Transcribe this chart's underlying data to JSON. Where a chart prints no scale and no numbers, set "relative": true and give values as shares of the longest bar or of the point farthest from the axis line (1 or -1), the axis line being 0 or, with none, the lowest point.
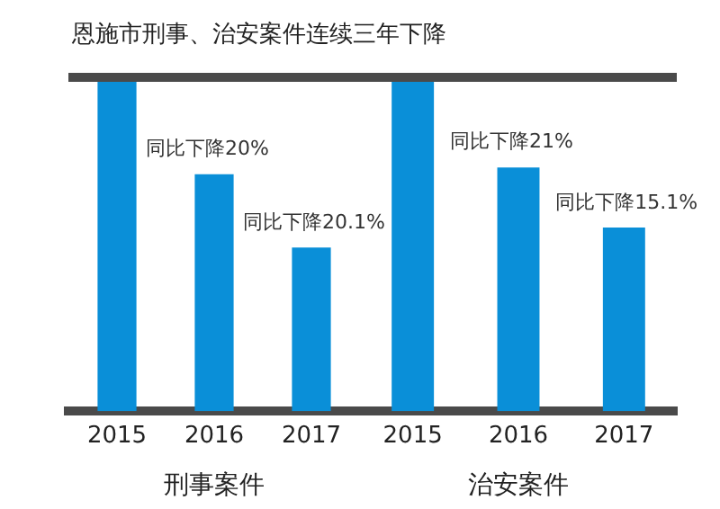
{
  "chart_data": [
    {
      "type": "bar",
      "title": "恩施市刑事、治安案件连续三年下降",
      "xlabel": "刑事案件",
      "relative": true,
      "color": "#0a8fd8",
      "categories": [
        "2015",
        "2016",
        "2017"
      ],
      "values": [
        1,
        0.71,
        0.49
      ],
      "annotations": [
        {
          "text": "同比下降20%",
          "x": "2016",
          "y": 0.71
        },
        {
          "text": "同比下降20.1%",
          "x": "2017",
          "y": 0.49
        }
      ],
      "ref_lines": [
        {
          "axis": "y",
          "value": 1,
          "color": "#4a4a4a"
        }
      ],
      "grid": false,
      "legend": false
    },
    {
      "type": "bar",
      "xlabel": "治安案件",
      "relative": true,
      "color": "#0a8fd8",
      "categories": [
        "2015",
        "2016",
        "2017"
      ],
      "values": [
        1,
        0.73,
        0.55
      ],
      "annotations": [
        {
          "text": "同比下降21%",
          "x": "2016",
          "y": 0.73
        },
        {
          "text": "同比下降15.1%",
          "x": "2017",
          "y": 0.55
        }
      ],
      "ref_lines": [
        {
          "axis": "y",
          "value": 1,
          "color": "#4a4a4a"
        }
      ],
      "grid": false,
      "legend": false
    }
  ]
}
